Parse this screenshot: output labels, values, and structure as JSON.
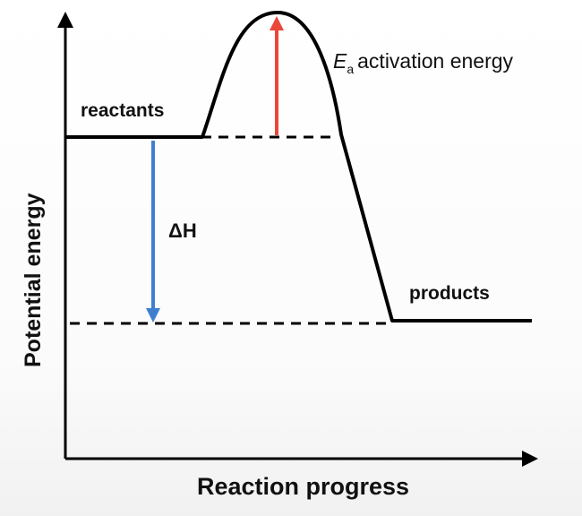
{
  "diagram": {
    "y_axis_label": "Potential energy",
    "x_axis_label": "Reaction progress",
    "reactants_label": "reactants",
    "products_label": "products",
    "delta_h_label": "ΔH",
    "ea_symbol": "E",
    "ea_subscript": "a",
    "ea_text": "activation energy",
    "colors": {
      "curve": "#000000",
      "activation_arrow": "#e8473a",
      "enthalpy_arrow": "#3f7fd0"
    }
  }
}
